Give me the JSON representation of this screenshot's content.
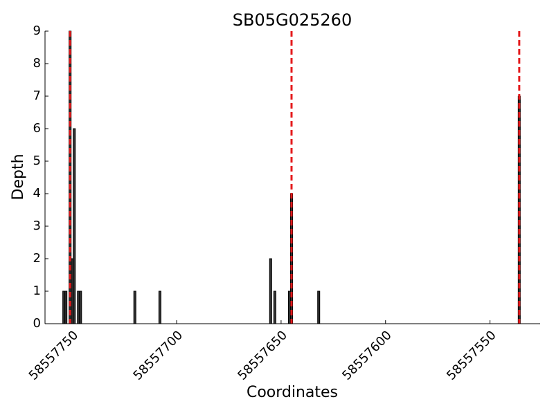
{
  "chart_data": {
    "type": "bar",
    "title": "SB05G025260",
    "x_label": "Coordinates",
    "y_label": "Depth",
    "x": [
      58557754,
      58557753,
      58557751,
      58557750,
      58557749,
      58557747,
      58557746,
      58557720,
      58557708,
      58557655,
      58557653,
      58557646,
      58557645,
      58557632,
      58557536
    ],
    "values": [
      1,
      1,
      9,
      2,
      6,
      1,
      1,
      1,
      1,
      2,
      1,
      1,
      4,
      1,
      7
    ],
    "color": "#333333",
    "xlim": [
      58557763,
      58557526
    ],
    "xticks": [
      58557750,
      58557700,
      58557650,
      58557600,
      58557550
    ],
    "ylim": [
      0,
      9
    ],
    "yticks": [
      0,
      1,
      2,
      3,
      4,
      5,
      6,
      7,
      8,
      9
    ],
    "vlines": [
      58557751,
      58557645,
      58557536
    ],
    "vline_color": "#e41a1c"
  }
}
